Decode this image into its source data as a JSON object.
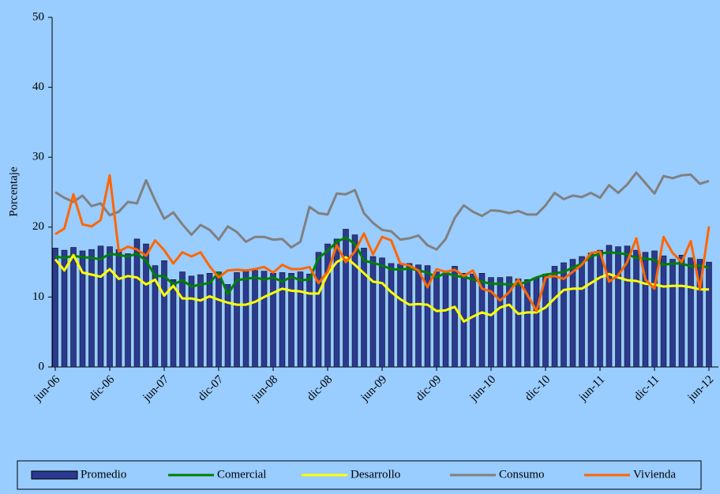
{
  "chart_data": {
    "type": "bar",
    "y_label": "Porcentaje",
    "categories": [
      "jun-06",
      null,
      null,
      null,
      null,
      null,
      "dic-06",
      null,
      null,
      null,
      null,
      null,
      "jun-07",
      null,
      null,
      null,
      null,
      null,
      "dic-07",
      null,
      null,
      null,
      null,
      null,
      "jun-08",
      null,
      null,
      null,
      null,
      null,
      "dic-08",
      null,
      null,
      null,
      null,
      null,
      "jun-09",
      null,
      null,
      null,
      null,
      null,
      "dic-09",
      null,
      null,
      null,
      null,
      null,
      "jun-10",
      null,
      null,
      null,
      null,
      null,
      "dic-10",
      null,
      null,
      null,
      null,
      null,
      "jun-11",
      null,
      null,
      null,
      null,
      null,
      "dic-11",
      null,
      null,
      null,
      null,
      null,
      "jun-12"
    ],
    "ylim": [
      0,
      50
    ],
    "yticks": [
      0,
      10,
      20,
      30,
      40,
      50
    ],
    "series": [
      {
        "name": "Promedio",
        "type": "bar",
        "color": "#2b3a8f",
        "values": [
          17.0,
          16.7,
          17.1,
          16.6,
          16.8,
          17.3,
          17.2,
          16.8,
          16.2,
          18.3,
          17.6,
          14.5,
          15.2,
          12.5,
          13.6,
          13.0,
          13.2,
          13.4,
          13.6,
          11.8,
          13.5,
          13.8,
          13.8,
          13.7,
          13.4,
          13.5,
          13.4,
          13.6,
          13.3,
          16.4,
          17.6,
          18.3,
          19.7,
          18.9,
          17.0,
          15.8,
          15.6,
          14.8,
          14.7,
          14.8,
          14.6,
          14.5,
          13.6,
          13.3,
          14.4,
          13.4,
          13.3,
          13.4,
          12.8,
          12.8,
          12.9,
          12.6,
          12.5,
          12.8,
          13.3,
          14.4,
          14.9,
          15.4,
          15.8,
          16.3,
          16.7,
          17.4,
          17.2,
          17.3,
          16.7,
          16.4,
          16.6,
          15.9,
          15.4,
          16.0,
          15.6,
          15.4,
          15.0
        ]
      },
      {
        "name": "Comercial",
        "type": "line",
        "color": "#008000",
        "values": [
          15.8,
          15.6,
          15.9,
          15.7,
          15.6,
          15.4,
          16.2,
          16.0,
          15.8,
          16.2,
          15.2,
          13.0,
          13.0,
          11.8,
          12.4,
          11.5,
          11.8,
          12.0,
          13.5,
          10.4,
          12.4,
          12.6,
          12.8,
          12.5,
          12.8,
          12.2,
          12.9,
          12.4,
          12.5,
          15.6,
          16.6,
          17.9,
          18.5,
          17.6,
          15.2,
          14.9,
          14.5,
          14.0,
          13.9,
          14.1,
          13.8,
          13.5,
          12.8,
          13.5,
          13.0,
          12.9,
          12.5,
          12.2,
          11.9,
          11.9,
          11.8,
          11.8,
          12.2,
          12.8,
          13.2,
          13.4,
          13.6,
          14.2,
          14.8,
          15.8,
          16.2,
          16.4,
          16.3,
          16.1,
          15.6,
          15.5,
          15.3,
          14.6,
          14.8,
          14.8,
          14.4,
          14.5,
          14.2
        ]
      },
      {
        "name": "Desarrollo",
        "type": "line",
        "color": "#ffff00",
        "values": [
          15.4,
          13.8,
          16.0,
          13.5,
          13.2,
          12.9,
          14.0,
          12.6,
          13.0,
          12.8,
          11.8,
          12.5,
          10.2,
          11.6,
          9.8,
          9.8,
          9.5,
          10.1,
          9.6,
          9.2,
          8.9,
          8.9,
          9.3,
          10.0,
          10.6,
          11.2,
          10.9,
          10.8,
          10.5,
          10.5,
          13.3,
          15.0,
          15.7,
          14.6,
          13.4,
          12.2,
          12.0,
          10.7,
          9.7,
          8.9,
          9.0,
          8.9,
          8.0,
          8.1,
          8.6,
          6.5,
          7.2,
          7.8,
          7.4,
          8.5,
          8.9,
          7.6,
          7.8,
          7.8,
          8.5,
          9.8,
          11.0,
          11.2,
          11.2,
          12.0,
          12.8,
          13.3,
          12.8,
          12.4,
          12.3,
          11.9,
          11.8,
          11.5,
          11.6,
          11.6,
          11.4,
          11.1,
          11.1
        ]
      },
      {
        "name": "Consumo",
        "type": "line",
        "color": "#808080",
        "values": [
          25.0,
          24.2,
          23.6,
          24.5,
          23.0,
          23.4,
          21.7,
          22.2,
          23.6,
          23.4,
          26.7,
          23.8,
          21.2,
          22.1,
          20.4,
          18.9,
          20.3,
          19.6,
          18.2,
          20.1,
          19.3,
          17.9,
          18.6,
          18.6,
          18.2,
          18.3,
          17.1,
          17.9,
          22.9,
          22.0,
          21.8,
          24.8,
          24.7,
          25.3,
          22.0,
          20.6,
          19.6,
          19.4,
          18.2,
          18.4,
          18.8,
          17.4,
          16.8,
          18.3,
          21.3,
          23.1,
          22.2,
          21.6,
          22.4,
          22.3,
          22.0,
          22.3,
          21.8,
          21.8,
          23.1,
          24.9,
          24.0,
          24.5,
          24.3,
          24.9,
          24.2,
          26.0,
          24.9,
          26.1,
          27.8,
          26.3,
          24.8,
          27.3,
          27.0,
          27.4,
          27.5,
          26.2,
          26.6
        ]
      },
      {
        "name": "Vivienda",
        "type": "line",
        "color": "#ff6600",
        "values": [
          19.0,
          19.8,
          24.7,
          20.4,
          20.1,
          21.0,
          27.4,
          16.5,
          17.2,
          16.8,
          15.9,
          18.1,
          16.7,
          14.8,
          16.4,
          15.8,
          16.4,
          14.4,
          12.8,
          13.8,
          13.9,
          13.8,
          14.0,
          14.3,
          13.5,
          14.6,
          14.0,
          14.0,
          14.3,
          12.0,
          13.6,
          17.4,
          15.0,
          16.5,
          19.1,
          16.1,
          18.6,
          18.1,
          14.8,
          14.5,
          13.8,
          11.4,
          14.0,
          13.6,
          13.9,
          13.0,
          13.8,
          11.2,
          10.8,
          9.5,
          10.7,
          12.5,
          10.3,
          8.0,
          12.8,
          13.0,
          12.6,
          13.6,
          14.6,
          16.3,
          16.5,
          12.2,
          13.1,
          15.0,
          18.4,
          12.5,
          11.2,
          18.6,
          16.3,
          15.0,
          18.0,
          11.1,
          20.1
        ]
      }
    ]
  }
}
